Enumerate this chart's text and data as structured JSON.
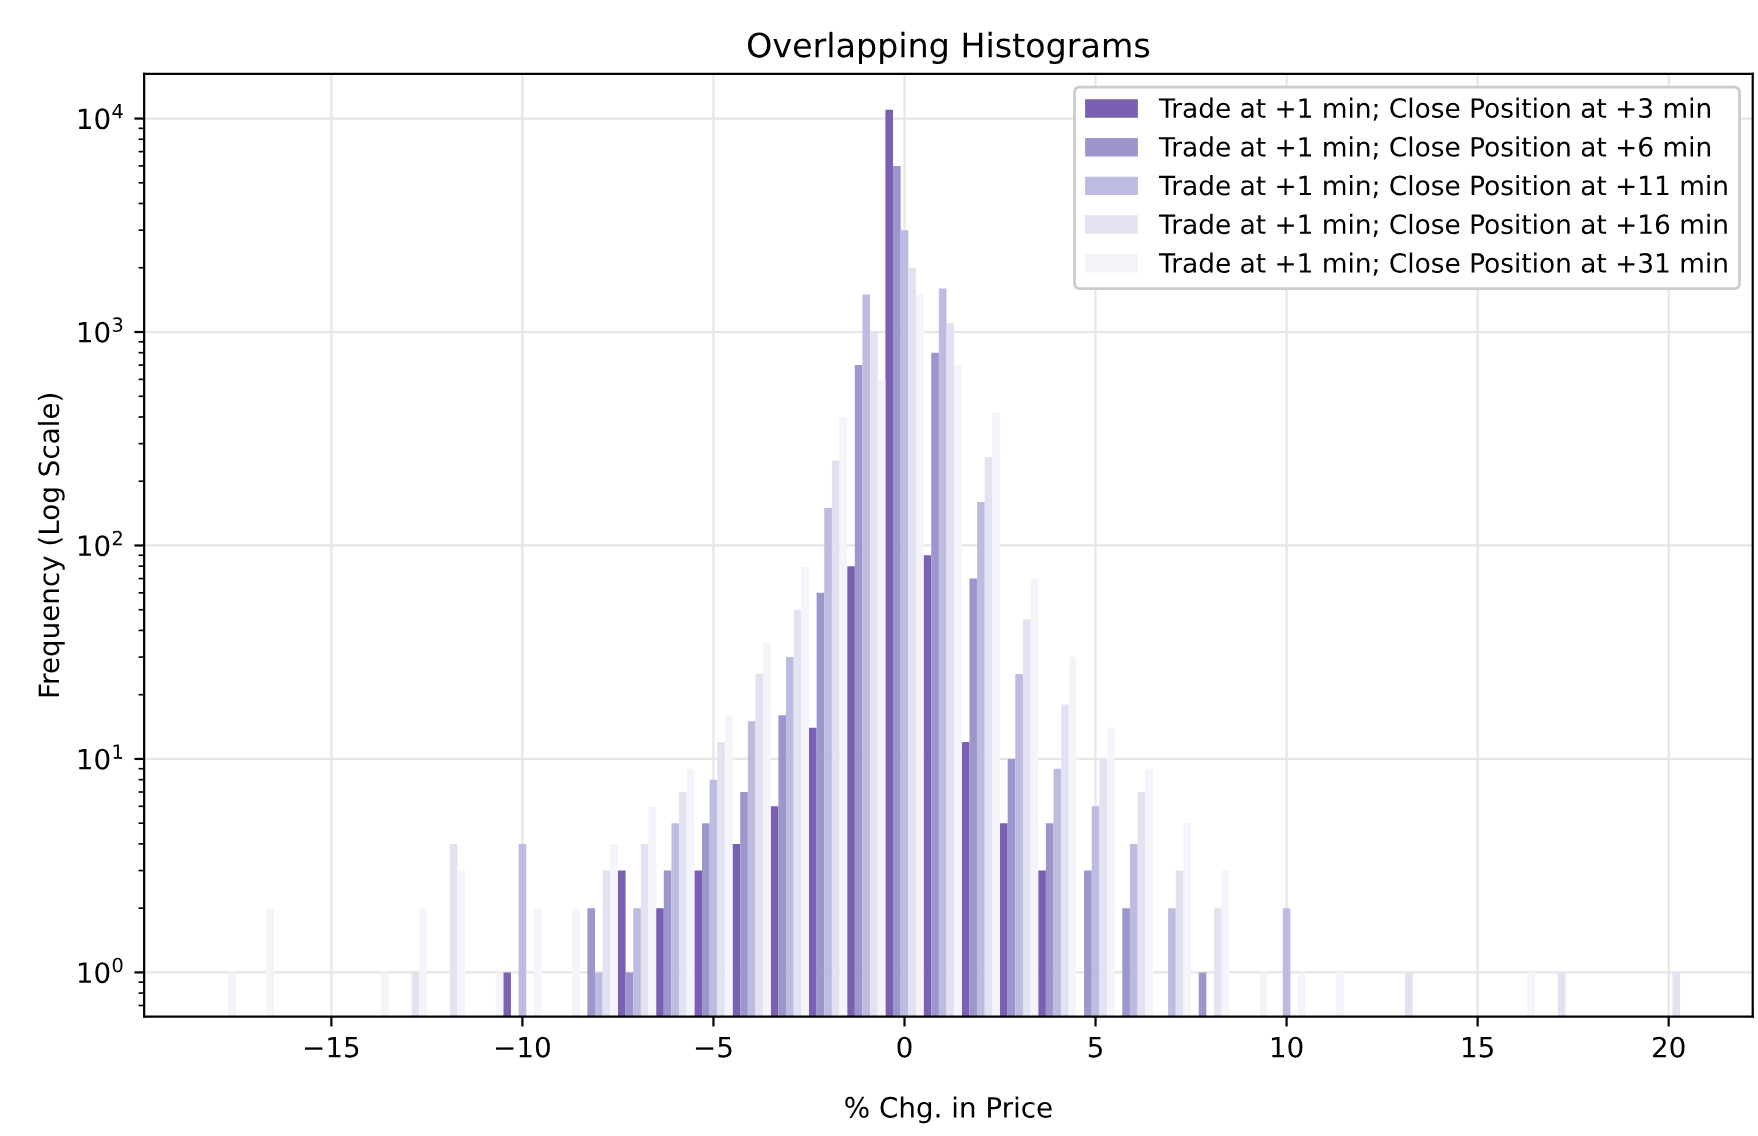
{
  "chart_data": {
    "type": "histogram",
    "title": "Overlapping Histograms",
    "xlabel": "% Chg. in Price",
    "ylabel": "Frequency (Log Scale)",
    "log": "y",
    "grid": true,
    "legend": "top right",
    "xlim": [
      -19.9,
      22.2
    ],
    "ylim": [
      0.62,
      16200
    ],
    "xticks": [
      {
        "value": -15,
        "label": "−15"
      },
      {
        "value": -10,
        "label": "−10"
      },
      {
        "value": -5,
        "label": "−5"
      },
      0,
      5,
      10,
      15,
      20
    ],
    "yticks": [
      {
        "value": 1,
        "label": "10$^{0}$"
      },
      {
        "value": 10,
        "label": "10$^{1}$"
      },
      {
        "value": 100,
        "label": "10$^{2}$"
      },
      {
        "value": 1000,
        "label": "10$^{3}$"
      },
      {
        "value": 10000,
        "label": "10$^{4}$"
      }
    ],
    "bins": [
      -18.5,
      -17.5,
      -16.5,
      -15.5,
      -14.5,
      -13.5,
      -12.5,
      -11.5,
      -10.5,
      -9.5,
      -8.5,
      -7.5,
      -6.5,
      -5.5,
      -4.5,
      -3.5,
      -2.5,
      -1.5,
      -0.5,
      0.5,
      1.5,
      2.5,
      3.5,
      4.5,
      5.5,
      6.5,
      7.5,
      8.5,
      9.5,
      10.5,
      11.5,
      12.5,
      13.5,
      14.5,
      15.5,
      16.5,
      17.5,
      18.5,
      19.5,
      20.5
    ],
    "series": [
      {
        "name": "Trade at +1 min; Close Position at +3 min",
        "color": "#7b5fb3",
        "values": [
          null,
          null,
          null,
          null,
          null,
          null,
          null,
          null,
          1,
          null,
          null,
          3,
          2,
          3,
          4,
          6,
          14,
          80,
          11000,
          90,
          12,
          5,
          3,
          null,
          null,
          null,
          null,
          null,
          null,
          null,
          null,
          null,
          null,
          null,
          null,
          null,
          null,
          null,
          null
        ]
      },
      {
        "name": "Trade at +1 min; Close Position at +6 min",
        "color": "#9c96cc",
        "values": [
          null,
          null,
          null,
          null,
          null,
          null,
          null,
          null,
          null,
          null,
          2,
          1,
          3,
          5,
          7,
          16,
          60,
          700,
          6000,
          800,
          70,
          10,
          5,
          3,
          2,
          null,
          1,
          null,
          null,
          null,
          null,
          null,
          null,
          null,
          null,
          null,
          null,
          null,
          null
        ]
      },
      {
        "name": "Trade at +1 min; Close Position at +11 min",
        "color": "#bdbbdf",
        "values": [
          null,
          null,
          null,
          null,
          null,
          null,
          null,
          null,
          4,
          null,
          1,
          2,
          5,
          8,
          15,
          30,
          150,
          1500,
          3000,
          1600,
          160,
          25,
          9,
          6,
          4,
          2,
          null,
          null,
          2,
          null,
          null,
          null,
          null,
          null,
          null,
          null,
          null,
          null,
          null
        ]
      },
      {
        "name": "Trade at +1 min; Close Position at +16 min",
        "color": "#e3e2f0",
        "values": [
          null,
          null,
          null,
          null,
          null,
          1,
          4,
          null,
          null,
          null,
          3,
          4,
          7,
          12,
          25,
          50,
          250,
          1000,
          2000,
          1100,
          260,
          45,
          18,
          10,
          7,
          3,
          2,
          null,
          null,
          null,
          null,
          1,
          null,
          null,
          null,
          1,
          null,
          null,
          1
        ]
      },
      {
        "name": "Trade at +1 min; Close Position at +31 min",
        "color": "#f5f4fa",
        "values": [
          1,
          2,
          null,
          null,
          1,
          2,
          3,
          1,
          2,
          2,
          4,
          6,
          9,
          16,
          35,
          80,
          400,
          600,
          1500,
          700,
          420,
          70,
          30,
          14,
          9,
          5,
          3,
          1,
          1,
          1,
          null,
          null,
          null,
          null,
          1,
          null,
          null,
          null,
          null
        ]
      }
    ]
  }
}
